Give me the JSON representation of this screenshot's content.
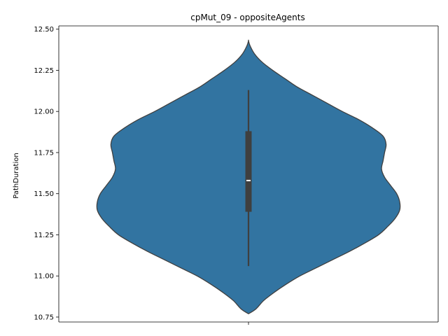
{
  "chart_data": {
    "type": "violin",
    "title": "cpMut_09 - oppositeAgents",
    "xlabel": "",
    "ylabel": "PathDuration",
    "ylim": [
      10.72,
      12.52
    ],
    "yticks": [
      10.75,
      11.0,
      11.25,
      11.5,
      11.75,
      12.0,
      12.25,
      12.5
    ],
    "ytick_labels": [
      "10.75",
      "11.00",
      "11.25",
      "11.50",
      "11.75",
      "12.00",
      "12.25",
      "12.50"
    ],
    "xticks": [
      ""
    ],
    "grid": false,
    "legend": "none",
    "colors": {
      "violin": "#3274a1",
      "outline": "#3f3f3f",
      "box": "#3f3f3f",
      "median": "#ffffff"
    },
    "violin": {
      "min": 10.77,
      "max": 12.43,
      "density_profile": [
        [
          10.77,
          0.0
        ],
        [
          10.8,
          0.05
        ],
        [
          10.85,
          0.1
        ],
        [
          10.9,
          0.17
        ],
        [
          10.95,
          0.25
        ],
        [
          11.0,
          0.34
        ],
        [
          11.05,
          0.45
        ],
        [
          11.1,
          0.56
        ],
        [
          11.15,
          0.67
        ],
        [
          11.2,
          0.77
        ],
        [
          11.25,
          0.86
        ],
        [
          11.3,
          0.92
        ],
        [
          11.35,
          0.97
        ],
        [
          11.4,
          1.0
        ],
        [
          11.45,
          1.0
        ],
        [
          11.5,
          0.98
        ],
        [
          11.55,
          0.94
        ],
        [
          11.6,
          0.9
        ],
        [
          11.65,
          0.88
        ],
        [
          11.7,
          0.89
        ],
        [
          11.75,
          0.9
        ],
        [
          11.8,
          0.91
        ],
        [
          11.85,
          0.89
        ],
        [
          11.9,
          0.82
        ],
        [
          11.95,
          0.73
        ],
        [
          12.0,
          0.62
        ],
        [
          12.05,
          0.52
        ],
        [
          12.1,
          0.42
        ],
        [
          12.15,
          0.32
        ],
        [
          12.2,
          0.24
        ],
        [
          12.25,
          0.16
        ],
        [
          12.3,
          0.09
        ],
        [
          12.35,
          0.04
        ],
        [
          12.4,
          0.01
        ],
        [
          12.43,
          0.0
        ]
      ]
    },
    "box": {
      "whisker_low": 11.06,
      "q1": 11.39,
      "median": 11.58,
      "q3": 11.88,
      "whisker_high": 12.13
    }
  }
}
